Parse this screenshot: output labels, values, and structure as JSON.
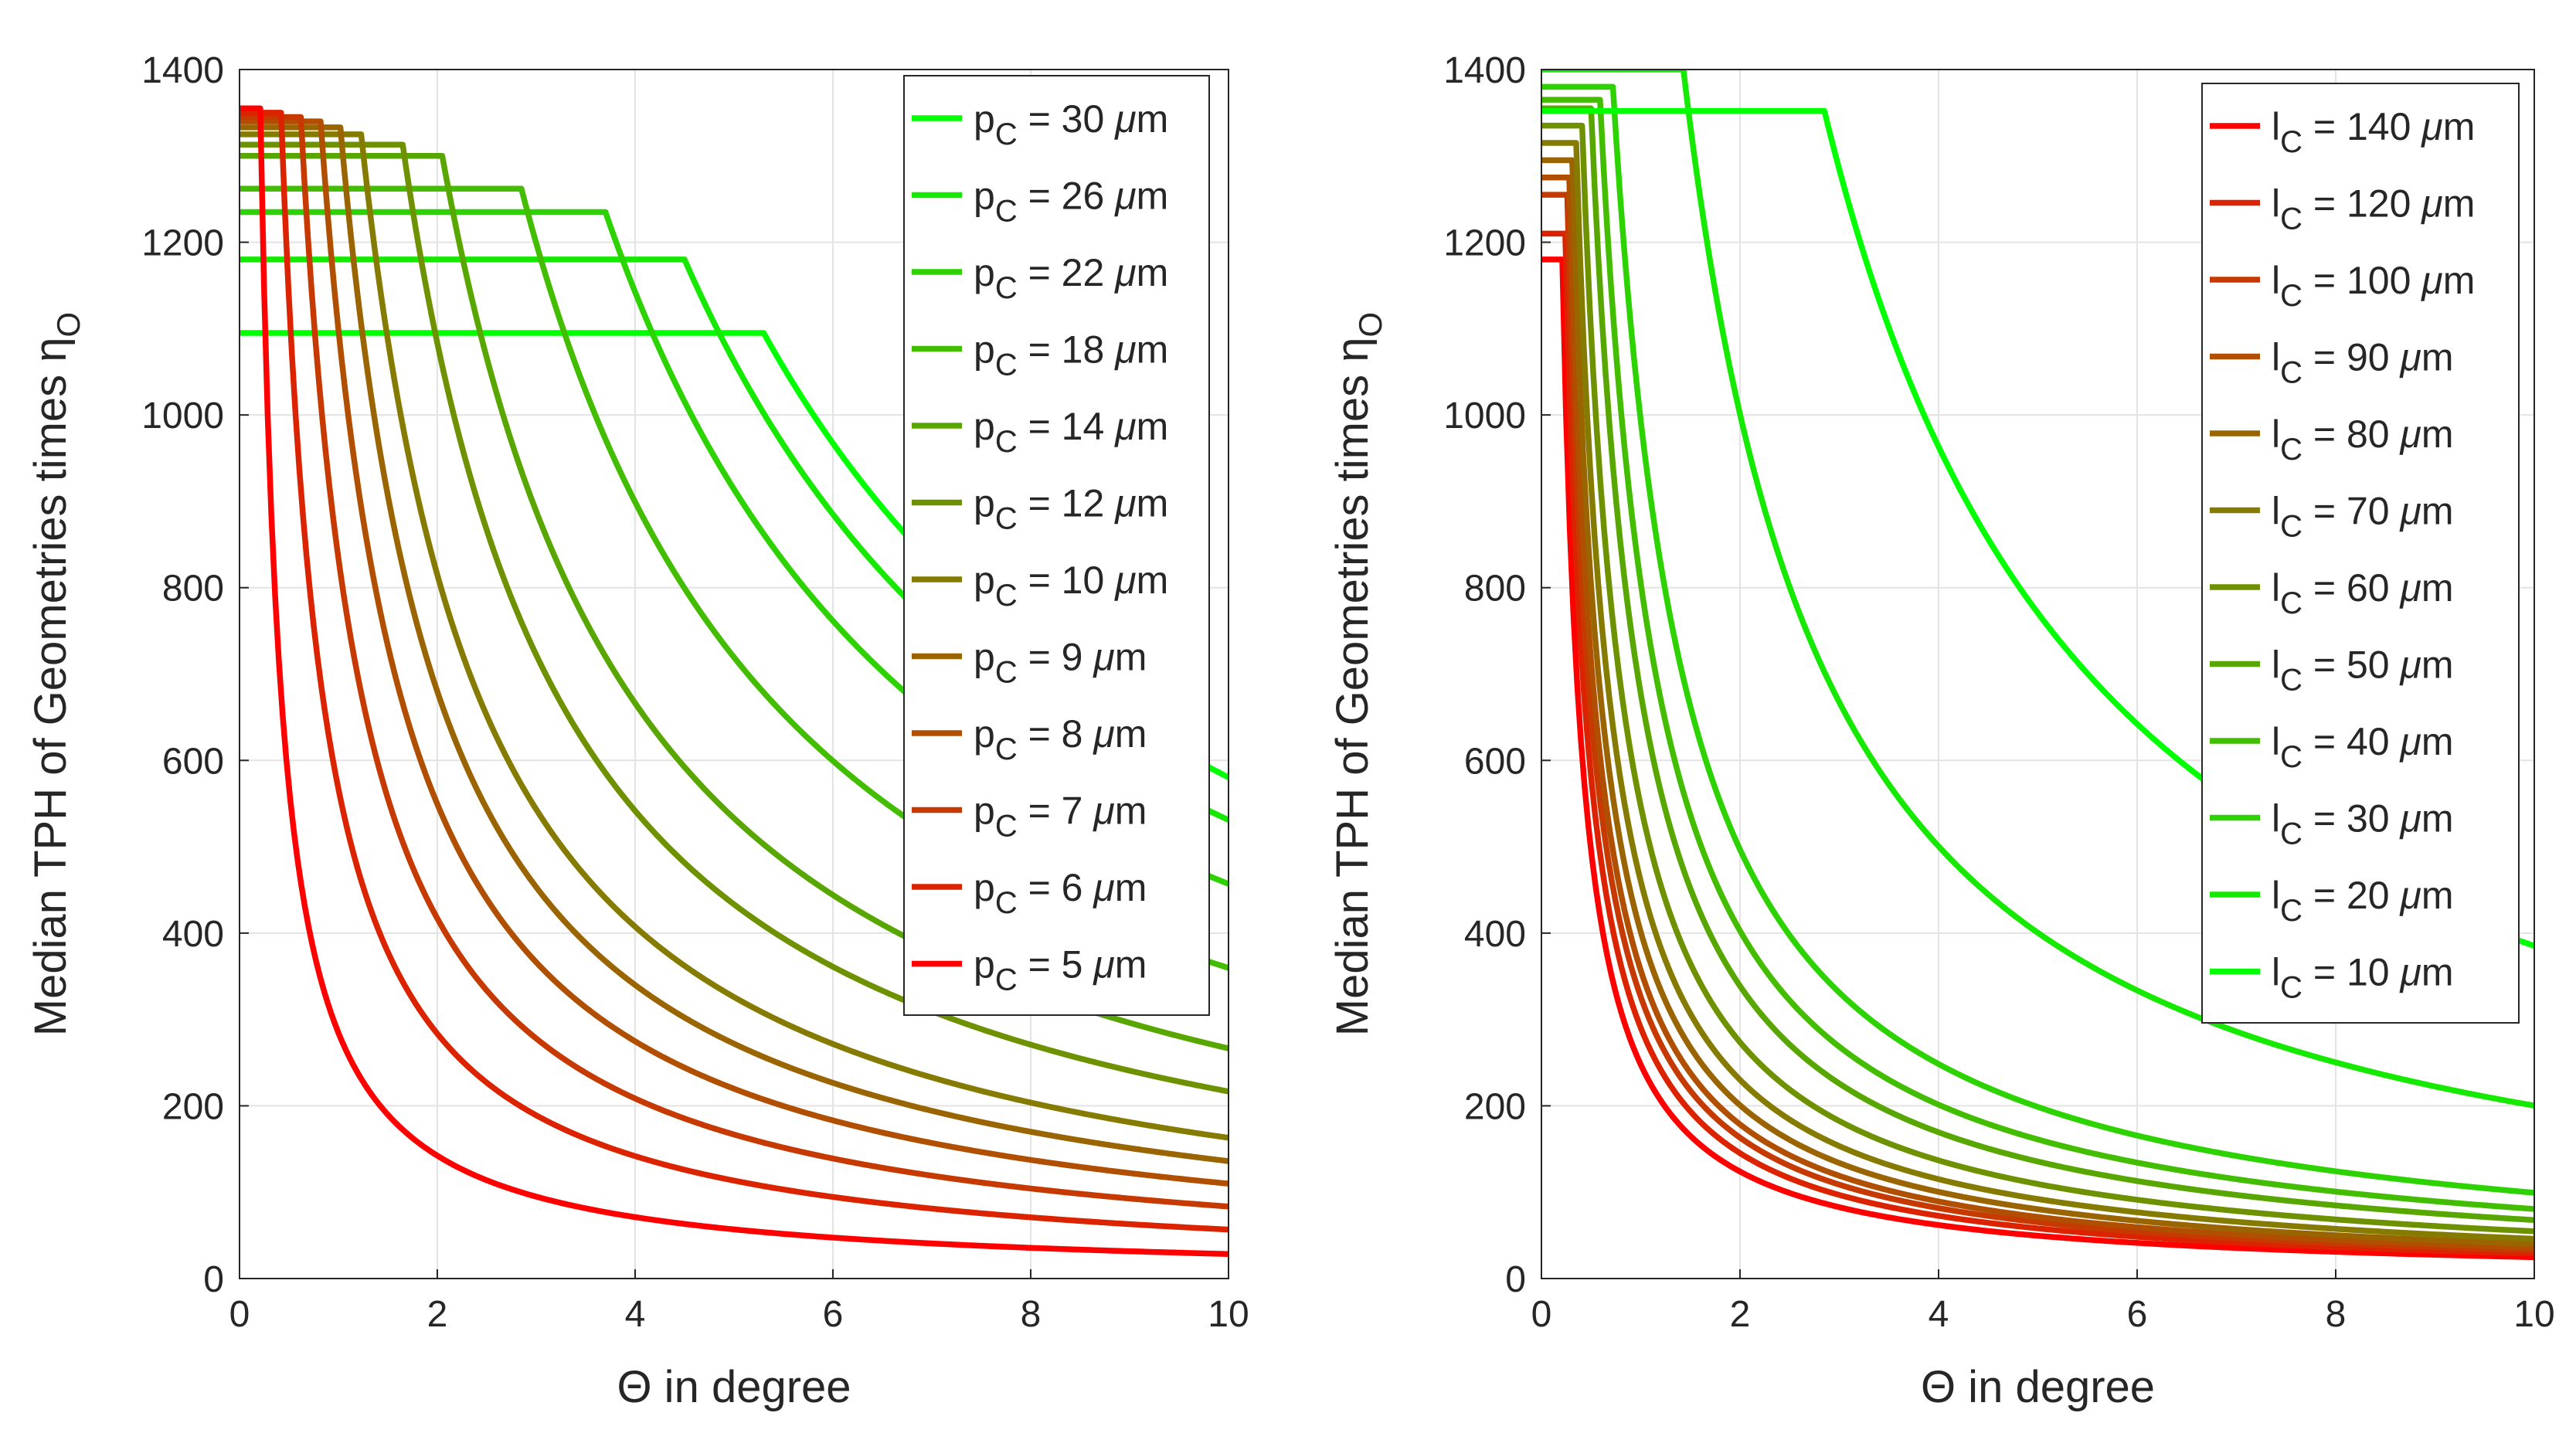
{
  "chart_data": [
    {
      "type": "line",
      "xlabel": "Θ in degree",
      "ylabel": "Median TPH of Geometries times η",
      "ylabel_subscript": "O",
      "xlim": [
        0,
        10
      ],
      "ylim": [
        0,
        1400
      ],
      "xticks": [
        "0",
        "2",
        "4",
        "6",
        "8",
        "10"
      ],
      "yticks": [
        "0",
        "200",
        "400",
        "600",
        "800",
        "1000",
        "1200",
        "1400"
      ],
      "grid": true,
      "legend_position": "top-right",
      "legend_symbol": "p",
      "legend_subscript": "C",
      "model": "plateau value until knee angle, then decays as k / Θ",
      "series": [
        {
          "name": "p_C = 30 μm",
          "label": "30",
          "color": "#00ff00",
          "plateau": 1095,
          "knee": 5.3
        },
        {
          "name": "p_C = 26 μm",
          "label": "26",
          "color": "#16e900",
          "plateau": 1180,
          "knee": 4.5
        },
        {
          "name": "p_C = 22 μm",
          "label": "22",
          "color": "#2cd300",
          "plateau": 1235,
          "knee": 3.7
        },
        {
          "name": "p_C = 18 μm",
          "label": "18",
          "color": "#42bd00",
          "plateau": 1262,
          "knee": 2.85
        },
        {
          "name": "p_C = 14 μm",
          "label": "14",
          "color": "#58a700",
          "plateau": 1300,
          "knee": 2.05
        },
        {
          "name": "p_C = 12 μm",
          "label": "12",
          "color": "#6e9100",
          "plateau": 1313,
          "knee": 1.65
        },
        {
          "name": "p_C = 10 μm",
          "label": "10",
          "color": "#847b00",
          "plateau": 1325,
          "knee": 1.23
        },
        {
          "name": "p_C = 9 μm",
          "label": "9",
          "color": "#9a6500",
          "plateau": 1333,
          "knee": 1.02
        },
        {
          "name": "p_C = 8 μm",
          "label": "8",
          "color": "#b04f00",
          "plateau": 1340,
          "knee": 0.82
        },
        {
          "name": "p_C = 7 μm",
          "label": "7",
          "color": "#c63900",
          "plateau": 1345,
          "knee": 0.62
        },
        {
          "name": "p_C = 6 μm",
          "label": "6",
          "color": "#dc2300",
          "plateau": 1350,
          "knee": 0.42
        },
        {
          "name": "p_C = 5 μm",
          "label": "5",
          "color": "#ff0000",
          "plateau": 1355,
          "knee": 0.21
        }
      ]
    },
    {
      "type": "line",
      "xlabel": "Θ in degree",
      "ylabel": "Median TPH of Geometries times η",
      "ylabel_subscript": "O",
      "xlim": [
        0,
        10
      ],
      "ylim": [
        0,
        1400
      ],
      "xticks": [
        "0",
        "2",
        "4",
        "6",
        "8",
        "10"
      ],
      "yticks": [
        "0",
        "200",
        "400",
        "600",
        "800",
        "1000",
        "1200",
        "1400"
      ],
      "grid": true,
      "legend_position": "top-right",
      "legend_symbol": "l",
      "legend_subscript": "C",
      "model": "plateau value until knee angle, then decays as k / Θ",
      "series": [
        {
          "name": "l_C = 140 μm",
          "label": "140",
          "color": "#ff0000",
          "plateau": 1180,
          "knee": 0.21
        },
        {
          "name": "l_C = 120 μm",
          "label": "120",
          "color": "#dc2300",
          "plateau": 1210,
          "knee": 0.24
        },
        {
          "name": "l_C = 100 μm",
          "label": "100",
          "color": "#c63900",
          "plateau": 1255,
          "knee": 0.26
        },
        {
          "name": "l_C = 90 μm",
          "label": "90",
          "color": "#b04f00",
          "plateau": 1275,
          "knee": 0.28
        },
        {
          "name": "l_C = 80 μm",
          "label": "80",
          "color": "#9a6500",
          "plateau": 1295,
          "knee": 0.31
        },
        {
          "name": "l_C = 70 μm",
          "label": "70",
          "color": "#847b00",
          "plateau": 1315,
          "knee": 0.35
        },
        {
          "name": "l_C = 60 μm",
          "label": "60",
          "color": "#6e9100",
          "plateau": 1335,
          "knee": 0.41
        },
        {
          "name": "l_C = 50 μm",
          "label": "50",
          "color": "#58a700",
          "plateau": 1355,
          "knee": 0.5
        },
        {
          "name": "l_C = 40 μm",
          "label": "40",
          "color": "#42bd00",
          "plateau": 1365,
          "knee": 0.59
        },
        {
          "name": "l_C = 30 μm",
          "label": "30",
          "color": "#2cd300",
          "plateau": 1380,
          "knee": 0.72
        },
        {
          "name": "l_C = 20 μm",
          "label": "20",
          "color": "#16e900",
          "plateau": 1400,
          "knee": 1.43
        },
        {
          "name": "l_C = 10 μm",
          "label": "10",
          "color": "#00ff00",
          "plateau": 1352,
          "knee": 2.85
        }
      ]
    }
  ]
}
